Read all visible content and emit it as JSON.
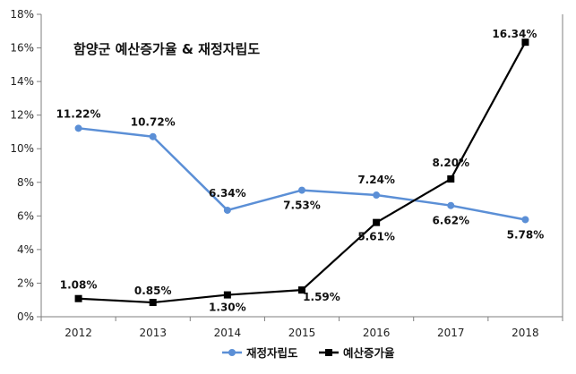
{
  "chart_data": {
    "type": "line",
    "title": "함양군 예산증가율 & 재정자립도",
    "xlabel": "",
    "ylabel": "",
    "categories": [
      "2012",
      "2013",
      "2014",
      "2015",
      "2016",
      "2017",
      "2018"
    ],
    "ylim": [
      0,
      18
    ],
    "y_ticks": [
      "0%",
      "2%",
      "4%",
      "6%",
      "8%",
      "10%",
      "12%",
      "14%",
      "16%",
      "18%"
    ],
    "grid": false,
    "legend_position": "bottom",
    "series": [
      {
        "name": "재정자립도",
        "color": "#5b8fd6",
        "marker": "circle",
        "values": [
          11.22,
          10.72,
          6.34,
          7.53,
          7.24,
          6.62,
          5.78
        ],
        "labels": [
          "11.22%",
          "10.72%",
          "6.34%",
          "7.53%",
          "7.24%",
          "6.62%",
          "5.78%"
        ]
      },
      {
        "name": "예산증가율",
        "color": "#000000",
        "marker": "square",
        "values": [
          1.08,
          0.85,
          1.3,
          1.59,
          5.61,
          8.2,
          16.34
        ],
        "labels": [
          "1.08%",
          "0.85%",
          "1.30%",
          "1.59%",
          "5.61%",
          "8.20%",
          "16.34%"
        ]
      }
    ]
  }
}
